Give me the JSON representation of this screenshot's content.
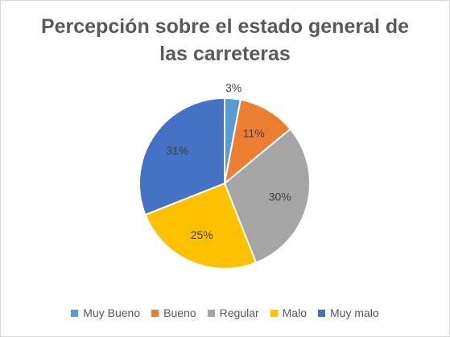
{
  "chart_data": {
    "type": "pie",
    "title": {
      "line1": "Percepción sobre el estado general de",
      "line2": "las carreteras"
    },
    "categories": [
      "Muy Bueno",
      "Bueno",
      "Regular",
      "Malo",
      "Muy malo"
    ],
    "values": [
      3,
      11,
      30,
      25,
      31
    ],
    "labels": [
      "3%",
      "11%",
      "30%",
      "25%",
      "31%"
    ],
    "colors": [
      "#5b9bd5",
      "#ed7d31",
      "#a5a5a5",
      "#ffc000",
      "#4472c4"
    ],
    "label_color": "#404040",
    "legend_position": "bottom"
  }
}
